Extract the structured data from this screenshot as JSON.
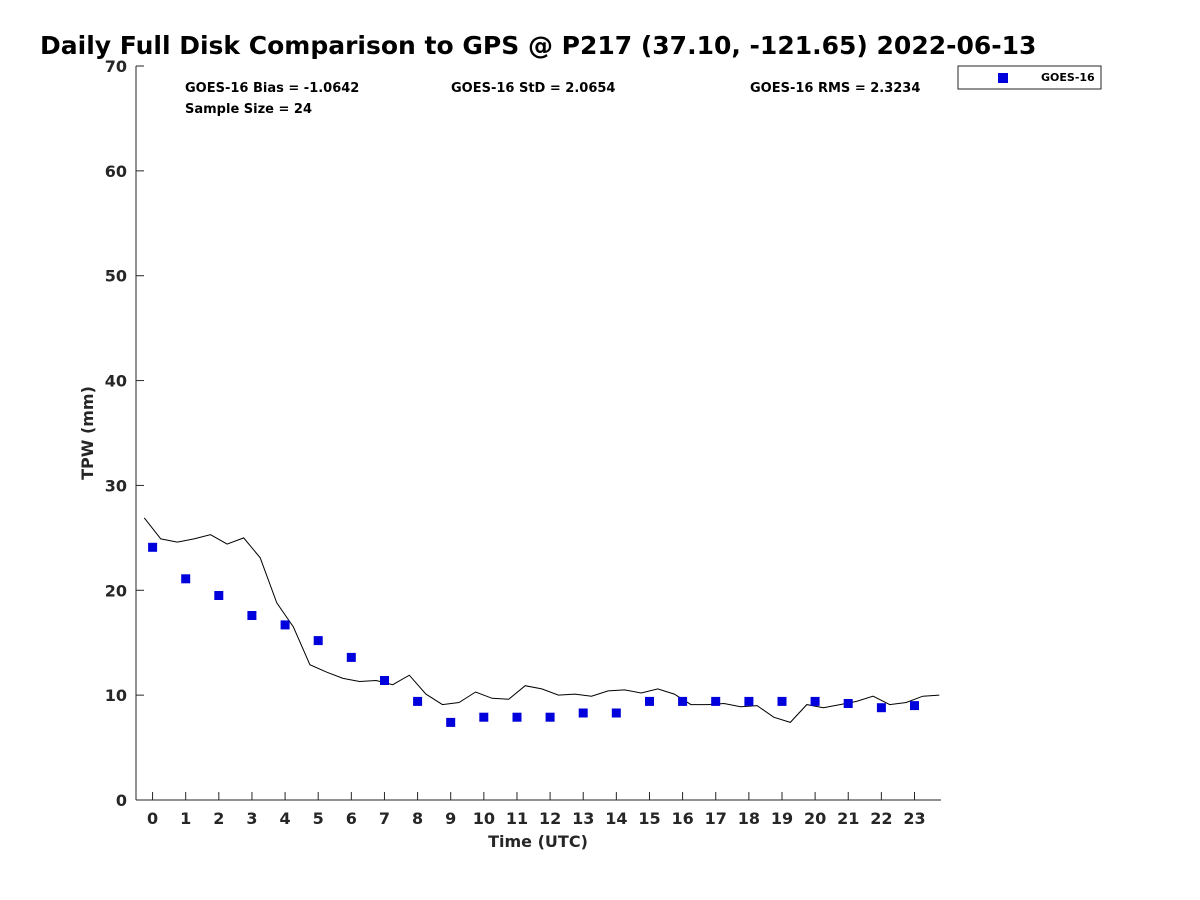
{
  "chart_data": {
    "type": "scatter",
    "title": "Daily Full Disk Comparison to GPS @ P217 (37.10, -121.65) 2022-06-13",
    "xlabel": "Time (UTC)",
    "ylabel": "TPW (mm)",
    "xlim": [
      -0.5,
      23.8
    ],
    "ylim": [
      0,
      70
    ],
    "xticks": [
      0,
      1,
      2,
      3,
      4,
      5,
      6,
      7,
      8,
      9,
      10,
      11,
      12,
      13,
      14,
      15,
      16,
      17,
      18,
      19,
      20,
      21,
      22,
      23
    ],
    "yticks": [
      0,
      10,
      20,
      30,
      40,
      50,
      60,
      70
    ],
    "grid": false,
    "legend_position": "top-right",
    "stats": {
      "bias": "GOES-16 Bias = -1.0642",
      "std": "GOES-16 StD = 2.0654",
      "rms": "GOES-16 RMS = 2.3234",
      "sample": "Sample Size = 24"
    },
    "series": [
      {
        "name": "GOES-16",
        "kind": "scatter",
        "color": "#0000dd",
        "x": [
          0,
          1,
          2,
          3,
          4,
          5,
          6,
          7,
          8,
          9,
          10,
          11,
          12,
          13,
          14,
          15,
          16,
          17,
          18,
          19,
          20,
          21,
          22,
          23
        ],
        "y": [
          24.1,
          21.1,
          19.5,
          17.6,
          16.7,
          15.2,
          13.6,
          11.4,
          9.4,
          7.4,
          7.9,
          7.9,
          7.9,
          8.3,
          8.3,
          9.4,
          9.4,
          9.4,
          9.4,
          9.4,
          9.4,
          9.2,
          8.8,
          9.0
        ]
      },
      {
        "kind": "line",
        "color": "#000000",
        "x": [
          -0.25,
          0.25,
          0.75,
          1.25,
          1.75,
          2.25,
          2.75,
          3.25,
          3.75,
          4.25,
          4.75,
          5.25,
          5.75,
          6.25,
          6.75,
          7.25,
          7.75,
          8.25,
          8.75,
          9.25,
          9.75,
          10.25,
          10.75,
          11.25,
          11.75,
          12.25,
          12.75,
          13.25,
          13.75,
          14.25,
          14.75,
          15.25,
          15.75,
          16.25,
          16.75,
          17.25,
          17.75,
          18.25,
          18.75,
          19.25,
          19.75,
          20.25,
          20.75,
          21.25,
          21.75,
          22.25,
          22.75,
          23.25,
          23.75
        ],
        "y": [
          26.9,
          24.9,
          24.6,
          24.9,
          25.3,
          24.4,
          25.0,
          23.1,
          18.8,
          16.5,
          12.9,
          12.2,
          11.6,
          11.3,
          11.4,
          11.0,
          11.9,
          10.1,
          9.1,
          9.3,
          10.3,
          9.7,
          9.6,
          10.9,
          10.6,
          10.0,
          10.1,
          9.9,
          10.4,
          10.5,
          10.2,
          10.6,
          10.1,
          9.1,
          9.1,
          9.2,
          8.9,
          9.0,
          7.9,
          7.4,
          9.1,
          8.8,
          9.1,
          9.4,
          9.9,
          9.1,
          9.3,
          9.9,
          10.0
        ]
      }
    ]
  }
}
